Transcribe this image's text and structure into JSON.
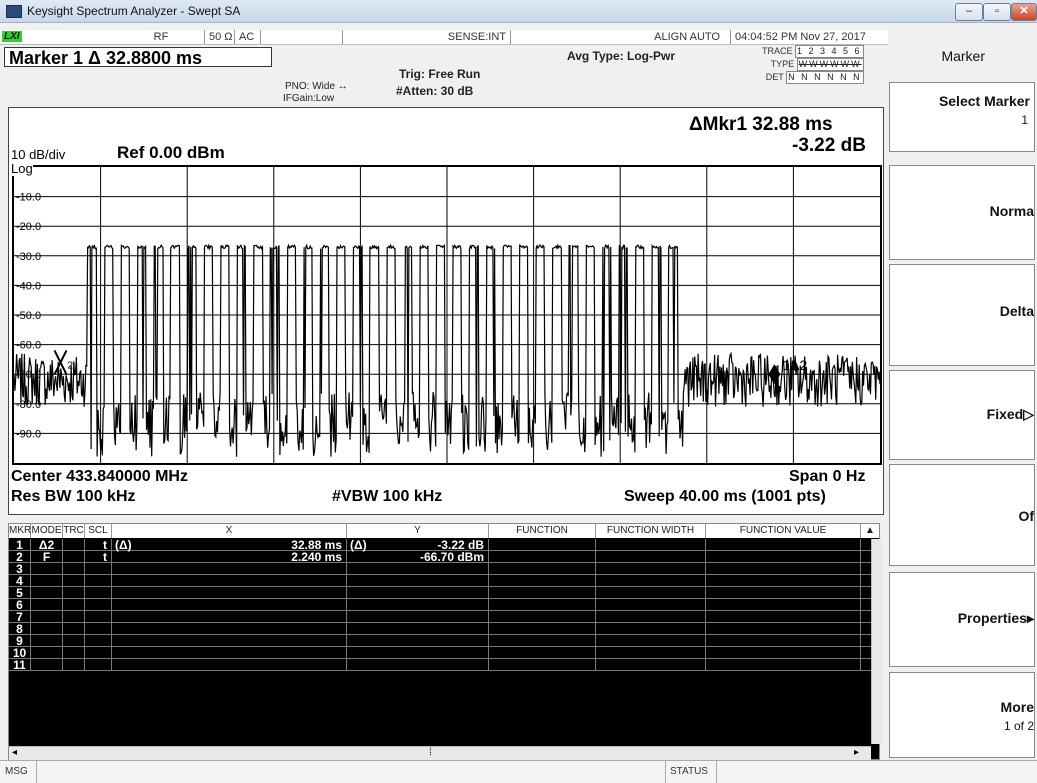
{
  "window": {
    "title": "Keysight Spectrum Analyzer - Swept SA",
    "buttons": [
      "–",
      "▫",
      "✕"
    ]
  },
  "status_strip": {
    "lxi": "LXI",
    "rf": "RF",
    "impedance": "50 Ω",
    "coupling": "AC",
    "sense": "SENSE:INT",
    "align": "ALIGN AUTO",
    "datetime": "04:04:52 PM Nov 27, 2017"
  },
  "header": {
    "marker_readout": "Marker 1 Δ 32.8800 ms",
    "pno": "PNO: Wide",
    "ifgain": "IFGain:Low",
    "trig": "Trig: Free Run",
    "atten": "#Atten: 30 dB",
    "avg_type": "Avg Type: Log-Pwr",
    "trace_label": "TRACE",
    "trace_values": "1 2 3 4 5 6",
    "type_label": "TYPE",
    "type_values": "WWWWWW",
    "det_label": "DET",
    "det_values": "N N N N N N"
  },
  "screen": {
    "delta_marker": "ΔMkr1 32.88 ms",
    "delta_value": "-3.22 dB",
    "scale": "10 dB/div",
    "ref": "Ref 0.00 dBm",
    "log": "Log",
    "center": "Center 433.840000 MHz",
    "span": "Span 0 Hz",
    "res_bw": "Res BW 100 kHz",
    "vbw": "#VBW 100 kHz",
    "sweep": "Sweep  40.00 ms (1001 pts)",
    "marker_x_label": "X2",
    "marker_1_label": "1Δ2"
  },
  "chart_data": {
    "type": "line",
    "xlabel": "",
    "ylabel": "",
    "y_ticks": [
      "-10.0",
      "-20.0",
      "-30.0",
      "-40.0",
      "-50.0",
      "-60.0",
      "-70.0",
      "-80.0",
      "-90.0"
    ],
    "ylim": [
      -100,
      0
    ],
    "xlim_ms": [
      0,
      40
    ],
    "grid": true,
    "series": [
      {
        "noise_floor_dbm": -72,
        "pulse_level_dbm": -27,
        "burst_start_ms": 3.4,
        "burst_end_ms": 30.9
      }
    ],
    "markers": [
      {
        "id": "1",
        "mode": "Δ2",
        "x_ms": 35.12,
        "y_db": -3.22
      },
      {
        "id": "2",
        "mode": "F",
        "x_ms": 2.24,
        "y_dbm": -66.7
      }
    ]
  },
  "marker_table": {
    "headers": [
      "MKR",
      "MODE",
      "TRC",
      "SCL",
      "X",
      "Y",
      "FUNCTION",
      "FUNCTION WIDTH",
      "FUNCTION VALUE"
    ],
    "rows": [
      {
        "mkr": "1",
        "mode": "Δ2",
        "trc": "",
        "scl": "t",
        "xprefix": "(Δ)",
        "x": "32.88 ms",
        "yprefix": "(Δ)",
        "y": "-3.22 dB"
      },
      {
        "mkr": "2",
        "mode": "F",
        "trc": "",
        "scl": "t",
        "xprefix": "",
        "x": "2.240 ms",
        "yprefix": "",
        "y": "-66.70 dBm"
      },
      {
        "mkr": "3"
      },
      {
        "mkr": "4"
      },
      {
        "mkr": "5"
      },
      {
        "mkr": "6"
      },
      {
        "mkr": "7"
      },
      {
        "mkr": "8"
      },
      {
        "mkr": "9"
      },
      {
        "mkr": "10"
      },
      {
        "mkr": "11"
      }
    ]
  },
  "softkeys": {
    "menu_title": "Marker",
    "select_marker": "Select Marker",
    "select_marker_value": "1",
    "normal": "Norma",
    "delta": "Delta",
    "fixed": "Fixed▷",
    "off": "Of",
    "properties": "Properties▸",
    "more": "More",
    "more_sub": "1 of 2"
  },
  "bottom": {
    "msg": "MSG",
    "status": "STATUS"
  },
  "colors": {
    "trace": "#000000",
    "grid": "#000000",
    "table_bg": "#000000",
    "table_text": "#ffffff"
  }
}
